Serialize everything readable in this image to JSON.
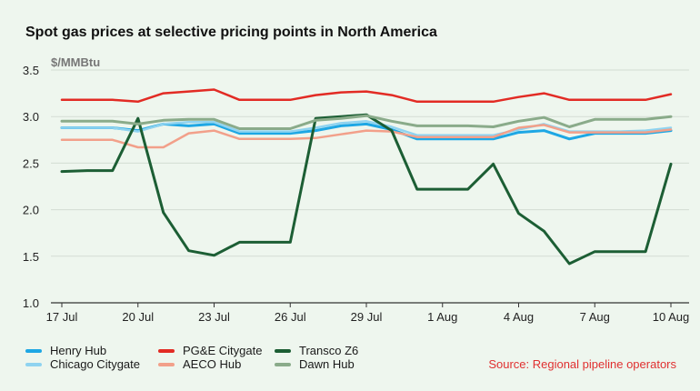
{
  "title": "Spot gas prices at selective pricing points in North America",
  "source": "Source: Regional pipeline operators",
  "chart_data": {
    "type": "line",
    "ylabel": "$/MMBtu",
    "xlabel": "",
    "ylim": [
      1.0,
      3.5
    ],
    "yticks": [
      "1.0",
      "1.5",
      "2.0",
      "2.5",
      "3.0",
      "3.5"
    ],
    "xtick_labels": [
      "17 Jul",
      "20 Jul",
      "23 Jul",
      "26 Jul",
      "29 Jul",
      "1 Aug",
      "4 Aug",
      "7 Aug",
      "10 Aug"
    ],
    "x": [
      "17 Jul",
      "18 Jul",
      "19 Jul",
      "20 Jul",
      "21 Jul",
      "22 Jul",
      "23 Jul",
      "24 Jul",
      "25 Jul",
      "26 Jul",
      "27 Jul",
      "28 Jul",
      "29 Jul",
      "30 Jul",
      "31 Jul",
      "1 Aug",
      "2 Aug",
      "3 Aug",
      "4 Aug",
      "5 Aug",
      "6 Aug",
      "7 Aug",
      "8 Aug",
      "9 Aug",
      "10 Aug"
    ],
    "grid": true,
    "legend_position": "bottom-left",
    "series": [
      {
        "name": "Henry Hub",
        "color": "#1ea7e4",
        "width": 3,
        "values": [
          2.88,
          2.88,
          2.88,
          2.85,
          2.92,
          2.9,
          2.92,
          2.82,
          2.82,
          2.82,
          2.85,
          2.9,
          2.92,
          2.86,
          2.76,
          2.76,
          2.76,
          2.76,
          2.83,
          2.85,
          2.76,
          2.82,
          2.82,
          2.82,
          2.85
        ]
      },
      {
        "name": "Chicago Citygate",
        "color": "#8fd3f0",
        "width": 2.5,
        "values": [
          2.88,
          2.88,
          2.88,
          2.84,
          2.92,
          2.94,
          2.94,
          2.84,
          2.84,
          2.84,
          2.88,
          2.93,
          2.95,
          2.89,
          2.8,
          2.8,
          2.8,
          2.8,
          2.86,
          2.92,
          2.84,
          2.84,
          2.84,
          2.85,
          2.88
        ]
      },
      {
        "name": "PG&E Citygate",
        "color": "#e22b24",
        "width": 2.5,
        "values": [
          3.18,
          3.18,
          3.18,
          3.16,
          3.25,
          3.27,
          3.29,
          3.18,
          3.18,
          3.18,
          3.23,
          3.26,
          3.27,
          3.23,
          3.16,
          3.16,
          3.16,
          3.16,
          3.21,
          3.25,
          3.18,
          3.18,
          3.18,
          3.18,
          3.24
        ]
      },
      {
        "name": "AECO Hub",
        "color": "#f2a08a",
        "width": 2.5,
        "values": [
          2.75,
          2.75,
          2.75,
          2.67,
          2.67,
          2.82,
          2.85,
          2.76,
          2.76,
          2.76,
          2.77,
          2.81,
          2.85,
          2.84,
          2.78,
          2.78,
          2.78,
          2.78,
          2.88,
          2.91,
          2.83,
          2.83,
          2.83,
          2.83,
          2.86
        ]
      },
      {
        "name": "Transco Z6",
        "color": "#1c5e34",
        "width": 3,
        "values": [
          2.41,
          2.42,
          2.42,
          2.98,
          1.97,
          1.56,
          1.51,
          1.65,
          1.65,
          1.65,
          2.98,
          3.0,
          3.02,
          2.85,
          2.22,
          2.22,
          2.22,
          2.49,
          1.96,
          1.77,
          1.42,
          1.55,
          1.55,
          1.55,
          2.49
        ]
      },
      {
        "name": "Dawn Hub",
        "color": "#8aab8a",
        "width": 3,
        "values": [
          2.95,
          2.95,
          2.95,
          2.92,
          2.96,
          2.97,
          2.97,
          2.87,
          2.87,
          2.87,
          2.96,
          2.98,
          3.01,
          2.95,
          2.9,
          2.9,
          2.9,
          2.89,
          2.95,
          2.99,
          2.89,
          2.97,
          2.97,
          2.97,
          3.0
        ]
      }
    ]
  }
}
